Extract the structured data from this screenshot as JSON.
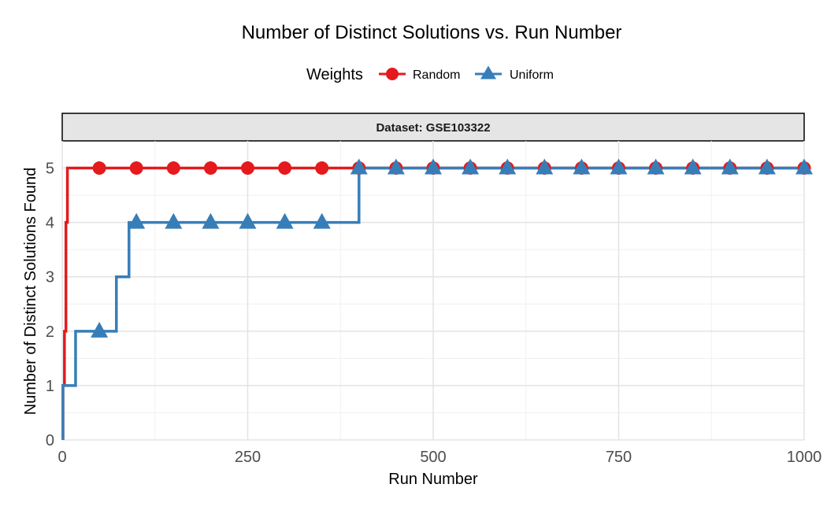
{
  "chart_data": {
    "type": "line",
    "step": true,
    "title": "Number of Distinct Solutions vs. Run Number",
    "xlabel": "Run Number",
    "ylabel": "Number of Distinct Solutions Found",
    "facet_label": "Dataset: GSE103322",
    "legend": {
      "title": "Weights",
      "position": "top"
    },
    "xlim": [
      0,
      1000
    ],
    "ylim": [
      0,
      5.5
    ],
    "x_ticks": [
      0,
      250,
      500,
      750,
      1000
    ],
    "y_ticks": [
      0,
      1,
      2,
      3,
      4,
      5
    ],
    "grid": true,
    "marker_interval": 50,
    "series": [
      {
        "name": "Random",
        "color": "#e41a1c",
        "marker": "circle",
        "steps": [
          [
            1,
            1
          ],
          [
            3,
            2
          ],
          [
            5,
            4
          ],
          [
            7,
            5
          ],
          [
            1000,
            5
          ]
        ]
      },
      {
        "name": "Uniform",
        "color": "#377eb8",
        "marker": "triangle",
        "steps": [
          [
            1,
            1
          ],
          [
            18,
            2
          ],
          [
            73,
            3
          ],
          [
            90,
            4
          ],
          [
            400,
            5
          ],
          [
            1000,
            5
          ]
        ]
      }
    ]
  }
}
